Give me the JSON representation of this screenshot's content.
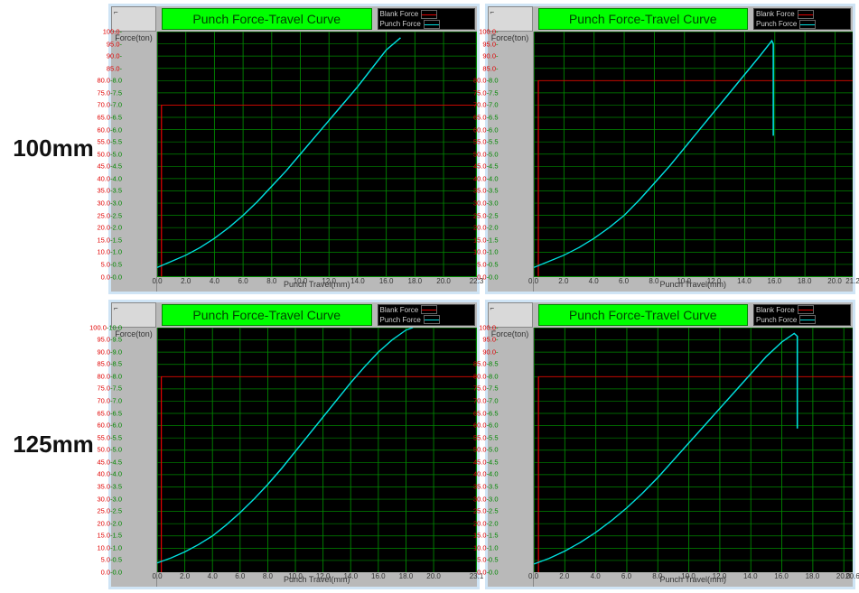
{
  "row_labels": [
    "100mm",
    "125mm"
  ],
  "common": {
    "title": "Punch Force-Travel Curve",
    "ylabel": "Force(ton)",
    "xlabel": "Punch Travel(mm)",
    "legend": [
      {
        "label": "Blank Force",
        "color": "#e00000"
      },
      {
        "label": "Punch Force",
        "color": "#00e0e0"
      }
    ],
    "grid_color": "#008800",
    "background": "#000000",
    "panel_border": "#cfe4f5",
    "header_bg": "#b9b9b9",
    "title_bg": "#00ff00",
    "title_fg": "#004400",
    "tick_red": "#e00000",
    "tick_green": "#008800",
    "y_ticks_red": [
      0,
      5,
      10,
      15,
      20,
      25,
      30,
      35,
      40,
      45,
      50,
      55,
      60,
      65,
      70,
      75,
      80,
      85,
      90,
      95,
      100
    ],
    "x_ticks": [
      0,
      2,
      4,
      6,
      8,
      10,
      12,
      14,
      16,
      18,
      20
    ]
  },
  "panels": [
    {
      "y2_ticks": [
        0.0,
        0.5,
        1.0,
        1.5,
        2.0,
        2.5,
        3.0,
        3.5,
        4.0,
        4.5,
        5.0,
        5.5,
        6.0,
        6.5,
        7.0,
        7.5,
        8.0
      ],
      "y2_max": 8.0,
      "x_max": 22.3,
      "blank_force_y": 70,
      "punch_curve": [
        [
          0,
          0.3
        ],
        [
          1,
          0.5
        ],
        [
          2,
          0.7
        ],
        [
          3,
          0.95
        ],
        [
          4,
          1.25
        ],
        [
          5,
          1.6
        ],
        [
          6,
          2.0
        ],
        [
          7,
          2.45
        ],
        [
          8,
          2.95
        ],
        [
          9,
          3.45
        ],
        [
          10,
          4.0
        ],
        [
          11,
          4.55
        ],
        [
          12,
          5.1
        ],
        [
          13,
          5.65
        ],
        [
          14,
          6.2
        ],
        [
          15,
          6.8
        ],
        [
          16,
          7.4
        ],
        [
          17,
          7.8
        ]
      ],
      "drop": null
    },
    {
      "y2_ticks": [
        0.0,
        0.5,
        1.0,
        1.5,
        2.0,
        2.5,
        3.0,
        3.5,
        4.0,
        4.5,
        5.0,
        5.5,
        6.0,
        6.5,
        7.0,
        7.5,
        8.0
      ],
      "y2_max": 8.0,
      "x_max": 21.2,
      "blank_force_y": 80,
      "punch_curve": [
        [
          0,
          0.3
        ],
        [
          1,
          0.5
        ],
        [
          2,
          0.7
        ],
        [
          3,
          0.95
        ],
        [
          4,
          1.25
        ],
        [
          5,
          1.6
        ],
        [
          6,
          2.0
        ],
        [
          7,
          2.5
        ],
        [
          8,
          3.05
        ],
        [
          9,
          3.6
        ],
        [
          10,
          4.2
        ],
        [
          11,
          4.8
        ],
        [
          12,
          5.4
        ],
        [
          13,
          6.0
        ],
        [
          14,
          6.6
        ],
        [
          15,
          7.2
        ],
        [
          15.8,
          7.7
        ]
      ],
      "drop": {
        "x": 15.9,
        "y_from": 7.6,
        "y_to": 4.6
      }
    },
    {
      "y2_ticks": [
        0.0,
        0.5,
        1.0,
        1.5,
        2.0,
        2.5,
        3.0,
        3.5,
        4.0,
        4.5,
        5.0,
        5.5,
        6.0,
        6.5,
        7.0,
        7.5,
        8.0,
        8.5,
        9.0,
        9.5,
        10.0
      ],
      "y2_max": 10.0,
      "x_max": 23.1,
      "blank_force_y": 80,
      "punch_curve": [
        [
          0,
          0.4
        ],
        [
          1,
          0.6
        ],
        [
          2,
          0.85
        ],
        [
          3,
          1.15
        ],
        [
          4,
          1.5
        ],
        [
          5,
          1.95
        ],
        [
          6,
          2.45
        ],
        [
          7,
          3.0
        ],
        [
          8,
          3.6
        ],
        [
          9,
          4.25
        ],
        [
          10,
          4.95
        ],
        [
          11,
          5.65
        ],
        [
          12,
          6.35
        ],
        [
          13,
          7.05
        ],
        [
          14,
          7.75
        ],
        [
          15,
          8.4
        ],
        [
          16,
          9.0
        ],
        [
          17,
          9.5
        ],
        [
          18,
          9.9
        ],
        [
          18.5,
          10.0
        ]
      ],
      "drop": null
    },
    {
      "y2_ticks": [
        0.0,
        0.5,
        1.0,
        1.5,
        2.0,
        2.5,
        3.0,
        3.5,
        4.0,
        4.5,
        5.0,
        5.5,
        6.0,
        6.5,
        7.0,
        7.5,
        8.0,
        8.5
      ],
      "y2_max": 8.5,
      "x_max": 20.6,
      "blank_force_y": 80,
      "punch_curve": [
        [
          0,
          0.3
        ],
        [
          1,
          0.5
        ],
        [
          2,
          0.75
        ],
        [
          3,
          1.05
        ],
        [
          4,
          1.4
        ],
        [
          5,
          1.8
        ],
        [
          6,
          2.25
        ],
        [
          7,
          2.75
        ],
        [
          8,
          3.3
        ],
        [
          9,
          3.9
        ],
        [
          10,
          4.5
        ],
        [
          11,
          5.1
        ],
        [
          12,
          5.7
        ],
        [
          13,
          6.3
        ],
        [
          14,
          6.9
        ],
        [
          15,
          7.5
        ],
        [
          16,
          8.0
        ],
        [
          16.8,
          8.3
        ]
      ],
      "drop": {
        "x": 17.0,
        "y_from": 8.2,
        "y_to": 5.0
      }
    }
  ]
}
